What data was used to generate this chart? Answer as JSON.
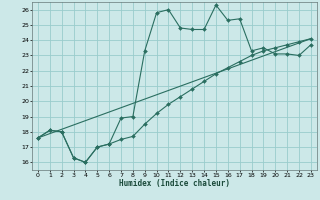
{
  "title": "",
  "xlabel": "Humidex (Indice chaleur)",
  "ylabel": "",
  "bg_color": "#cce8e8",
  "grid_color": "#99cccc",
  "line_color": "#2a6e60",
  "xlim": [
    -0.5,
    23.5
  ],
  "ylim": [
    15.5,
    26.5
  ],
  "xticks": [
    0,
    1,
    2,
    3,
    4,
    5,
    6,
    7,
    8,
    9,
    10,
    11,
    12,
    13,
    14,
    15,
    16,
    17,
    18,
    19,
    20,
    21,
    22,
    23
  ],
  "yticks": [
    16,
    17,
    18,
    19,
    20,
    21,
    22,
    23,
    24,
    25,
    26
  ],
  "line1_x": [
    0,
    1,
    2,
    3,
    4,
    5,
    6,
    7,
    8,
    9,
    10,
    11,
    12,
    13,
    14,
    15,
    16,
    17,
    18,
    19,
    20,
    21,
    22,
    23
  ],
  "line1_y": [
    17.6,
    18.1,
    18.0,
    16.3,
    16.0,
    17.0,
    17.2,
    18.9,
    19.0,
    23.3,
    25.8,
    26.0,
    24.8,
    24.7,
    24.7,
    26.3,
    25.3,
    25.4,
    23.3,
    23.5,
    23.1,
    23.1,
    23.0,
    23.7
  ],
  "line2_x": [
    0,
    1,
    2,
    3,
    4,
    5,
    6,
    7,
    8,
    9,
    10,
    11,
    12,
    13,
    14,
    15,
    16,
    17,
    18,
    19,
    20,
    21,
    22,
    23
  ],
  "line2_y": [
    17.6,
    18.1,
    18.0,
    16.3,
    16.0,
    17.0,
    17.2,
    17.5,
    17.7,
    18.5,
    19.2,
    19.8,
    20.3,
    20.8,
    21.3,
    21.8,
    22.2,
    22.6,
    23.0,
    23.3,
    23.5,
    23.7,
    23.9,
    24.1
  ],
  "line3_x": [
    0,
    23
  ],
  "line3_y": [
    17.6,
    24.1
  ],
  "figwidth": 3.2,
  "figheight": 2.0,
  "dpi": 100
}
